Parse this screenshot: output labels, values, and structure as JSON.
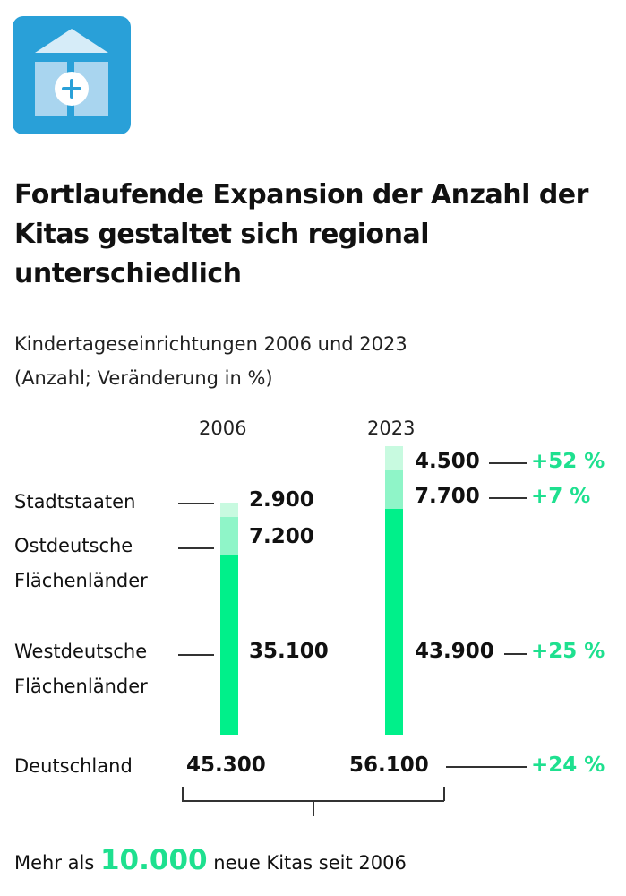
{
  "icon": "kita-house-plus-icon",
  "title": "Fortlaufende Expansion der Anzahl der Kitas gestaltet sich regional unterschiedlich",
  "subtitle1": "Kindertageseinrichtungen 2006 und 2023",
  "subtitle2": "(Anzahl; Veränderung in %)",
  "colors": {
    "west": "#00f08a",
    "ost": "#8ff5c8",
    "stadt": "#c8fae0",
    "accent": "#1ee08f",
    "icon_bg": "#29a0d8"
  },
  "chart_data": {
    "type": "bar",
    "stacked": true,
    "categories": [
      "2006",
      "2023"
    ],
    "series": [
      {
        "name": "Westdeutsche Flächenländer",
        "values": [
          35100,
          43900
        ],
        "change": "+25 %",
        "labels": [
          "35.100",
          "43.900"
        ]
      },
      {
        "name": "Ostdeutsche Flächenländer",
        "values": [
          7200,
          7700
        ],
        "change": "+7 %",
        "labels": [
          "7.200",
          "7.700"
        ]
      },
      {
        "name": "Stadtstaaten",
        "values": [
          2900,
          4500
        ],
        "change": "+52 %",
        "labels": [
          "2.900",
          "4.500"
        ]
      }
    ],
    "total": {
      "name": "Deutschland",
      "values": [
        45300,
        56100
      ],
      "labels": [
        "45.300",
        "56.100"
      ],
      "change": "+24 %"
    },
    "legend": {
      "stadt": "Stadtstaaten",
      "ost1": "Ostdeutsche",
      "ost2": "Flächenländer",
      "west1": "Westdeutsche",
      "west2": "Flächenländer"
    }
  },
  "footer": {
    "pre": "Mehr als ",
    "highlight": "10.000",
    "post": " neue Kitas seit 2006"
  }
}
